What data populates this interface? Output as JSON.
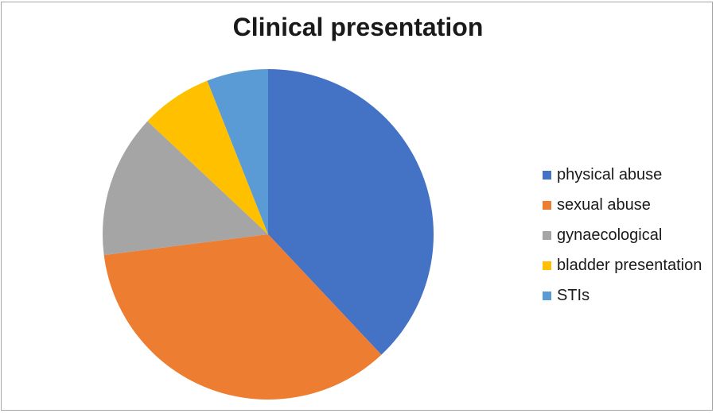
{
  "frame": {
    "border_color": "#a6a6a6",
    "background": "#ffffff"
  },
  "chart_data": {
    "type": "pie",
    "title": "Clinical presentation",
    "slices": [
      {
        "label": "physical abuse",
        "value": 38,
        "color": "#4472c4"
      },
      {
        "label": "sexual abuse",
        "value": 35,
        "color": "#ed7d31"
      },
      {
        "label": "gynaecological",
        "value": 14,
        "color": "#a5a5a5"
      },
      {
        "label": "bladder presentation",
        "value": 7,
        "color": "#ffc000"
      },
      {
        "label": "STIs",
        "value": 6,
        "color": "#5b9bd5"
      }
    ],
    "values_unit": "percent (estimated from slice angles)",
    "start_angle_deg": 0,
    "direction": "clockwise",
    "legend_position": "right",
    "data_labels": false,
    "title_color": "#1a1a1a",
    "legend_text_color": "#1a1a1a"
  }
}
